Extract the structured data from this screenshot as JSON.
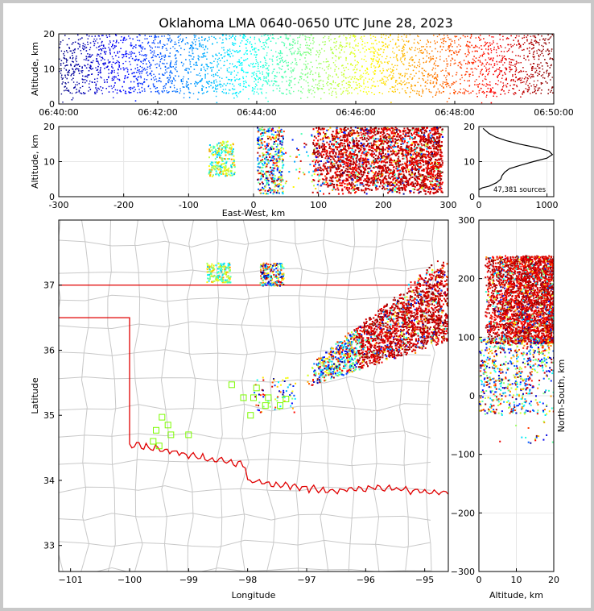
{
  "title": "Oklahoma LMA 0640-0650 UTC June 28, 2023",
  "colors": {
    "state_border": "#e00000",
    "county_lines": "#c8c8c8",
    "station_marker": "#7cfc00"
  },
  "chart_data": [
    {
      "id": "time_altitude",
      "type": "scatter",
      "ylabel": "Altitude, km",
      "xlabel": "",
      "x_ticks": [
        "06:40:00",
        "06:42:00",
        "06:44:00",
        "06:46:00",
        "06:48:00",
        "06:50:00"
      ],
      "xlim_minutes": [
        0,
        10
      ],
      "ylim": [
        0,
        20
      ],
      "y_ticks": [
        0,
        10,
        20
      ],
      "colormap": "jet by time"
    },
    {
      "id": "ew_altitude",
      "type": "scatter",
      "xlabel": "East-West, km",
      "ylabel": "Altitude, km",
      "xlim": [
        -300,
        300
      ],
      "x_ticks": [
        -300,
        -200,
        -100,
        0,
        100,
        200,
        300
      ],
      "ylim": [
        0,
        20
      ],
      "y_ticks": [
        0,
        10,
        20
      ],
      "clusters": [
        {
          "x_range": [
            -70,
            -30
          ],
          "z_range": [
            6,
            16
          ]
        },
        {
          "x_range": [
            5,
            45
          ],
          "z_range": [
            1,
            20
          ]
        },
        {
          "x_range": [
            90,
            290
          ],
          "z_range": [
            1,
            20
          ]
        }
      ]
    },
    {
      "id": "altitude_histogram",
      "type": "line",
      "xlim": [
        0,
        1100
      ],
      "x_ticks": [
        0,
        1000
      ],
      "ylim": [
        0,
        20
      ],
      "y_ticks": [
        0,
        10,
        20
      ],
      "annotation": "47,381 sources",
      "profile": [
        [
          0,
          2
        ],
        [
          50,
          2.5
        ],
        [
          150,
          3
        ],
        [
          260,
          4
        ],
        [
          320,
          5
        ],
        [
          340,
          6
        ],
        [
          380,
          7
        ],
        [
          450,
          8
        ],
        [
          620,
          9
        ],
        [
          800,
          10
        ],
        [
          1000,
          11
        ],
        [
          1080,
          12
        ],
        [
          1030,
          13
        ],
        [
          850,
          14
        ],
        [
          600,
          15
        ],
        [
          400,
          16
        ],
        [
          250,
          17
        ],
        [
          150,
          18
        ],
        [
          90,
          19
        ],
        [
          60,
          19.5
        ]
      ]
    },
    {
      "id": "plan_view",
      "type": "scatter",
      "xlabel": "Longitude",
      "ylabel": "Latitude",
      "xlim": [
        -101.2,
        -94.6
      ],
      "ylim": [
        32.6,
        38
      ],
      "x_ticks": [
        -101,
        -100,
        -99,
        -98,
        -97,
        -96,
        -95
      ],
      "y_ticks": [
        33,
        34,
        35,
        36,
        37
      ],
      "stations": [
        [
          -98.27,
          35.47
        ],
        [
          -97.85,
          35.42
        ],
        [
          -98.07,
          35.27
        ],
        [
          -97.9,
          35.27
        ],
        [
          -97.65,
          35.27
        ],
        [
          -97.35,
          35.25
        ],
        [
          -97.7,
          35.15
        ],
        [
          -97.45,
          35.15
        ],
        [
          -97.95,
          35.0
        ],
        [
          -99.45,
          34.97
        ],
        [
          -99.35,
          34.85
        ],
        [
          -99.55,
          34.77
        ],
        [
          -99.3,
          34.7
        ],
        [
          -99.6,
          34.6
        ],
        [
          -99.5,
          34.53
        ],
        [
          -99.0,
          34.7
        ]
      ]
    },
    {
      "id": "altitude_ns",
      "type": "scatter",
      "xlabel": "Altitude, km",
      "ylabel": "North-South, km",
      "xlim": [
        0,
        20
      ],
      "x_ticks": [
        0,
        10,
        20
      ],
      "ylim": [
        -300,
        300
      ],
      "y_ticks": [
        -300,
        -200,
        -100,
        0,
        100,
        200,
        300
      ]
    }
  ]
}
